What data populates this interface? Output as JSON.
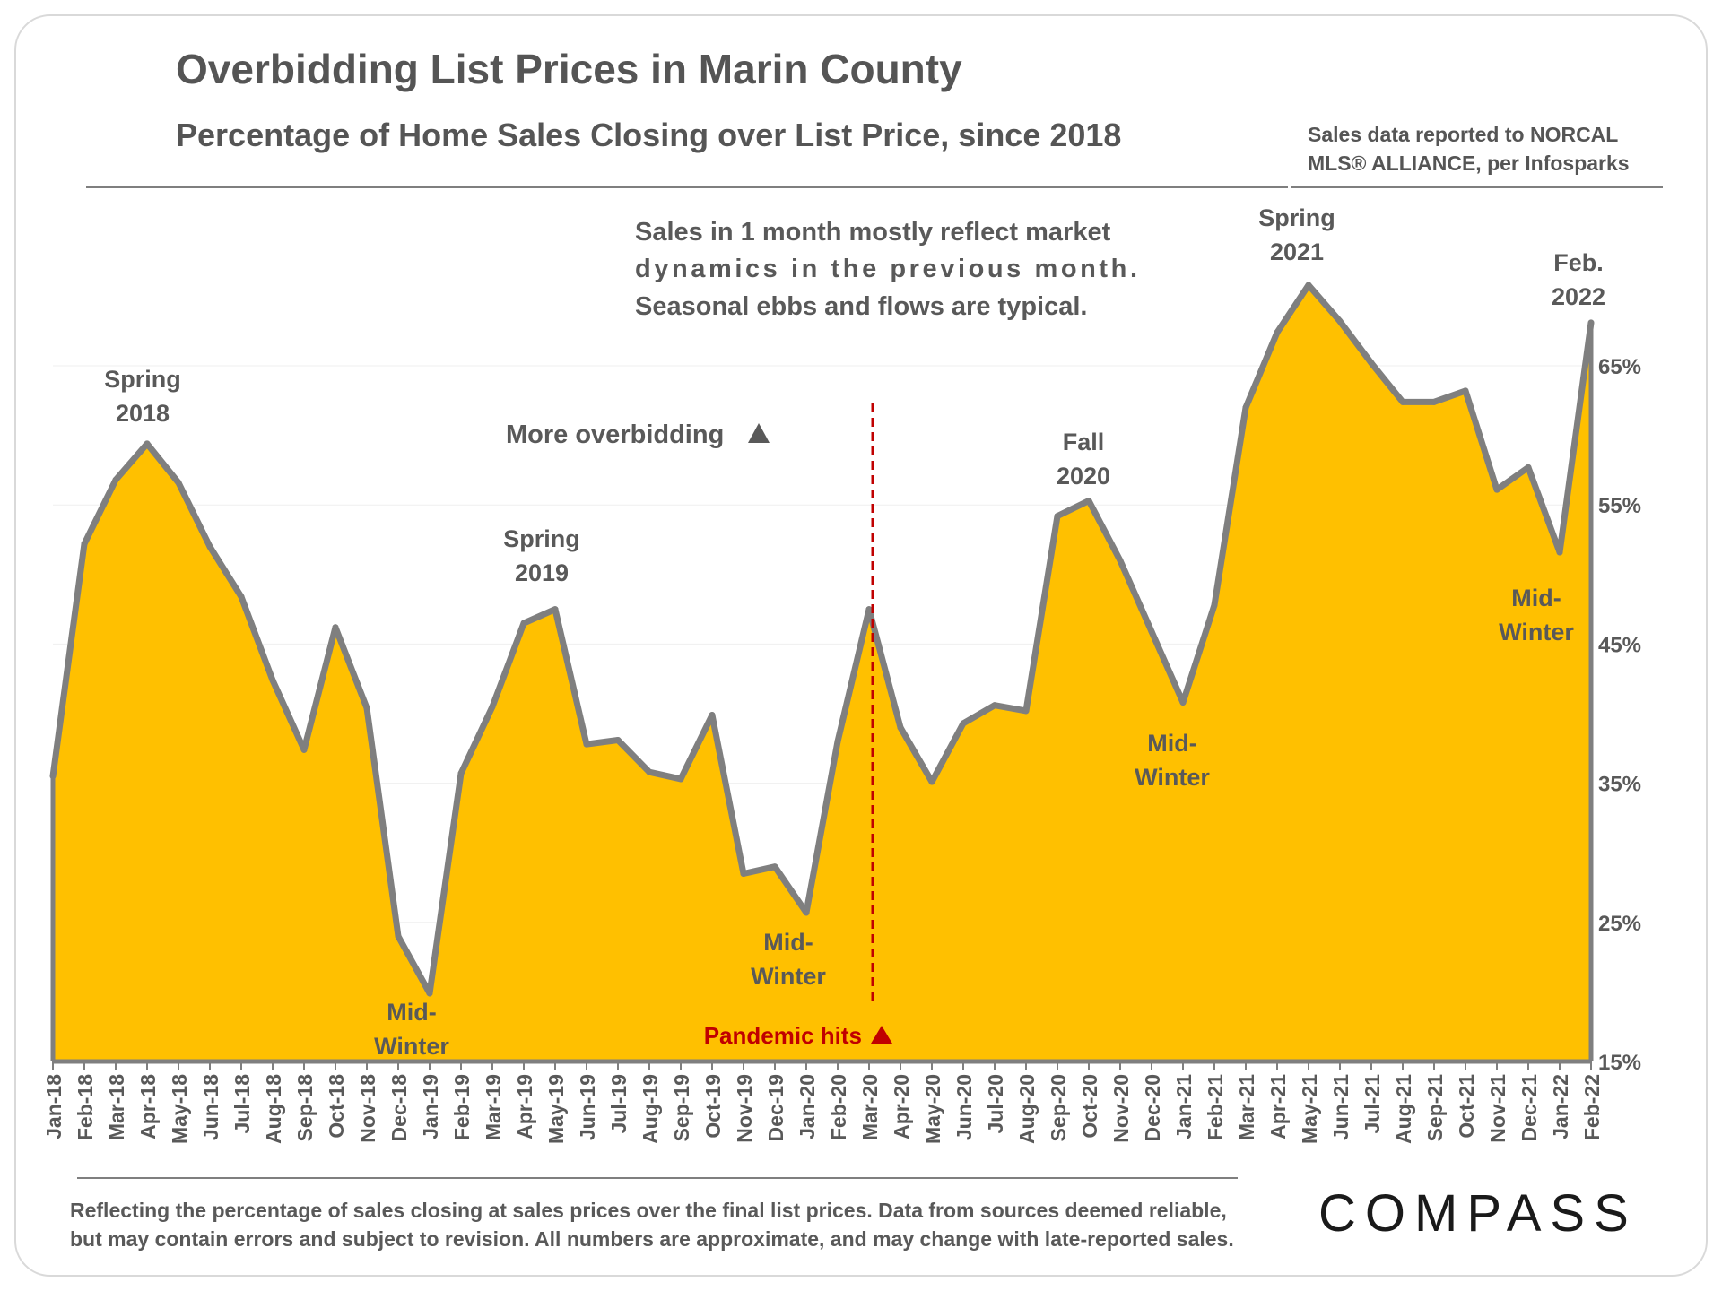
{
  "header": {
    "title": "Overbidding List Prices in Marin County",
    "subtitle": "Percentage of Home Sales Closing over List Price, since 2018",
    "source_line1": "Sales data reported to NORCAL",
    "source_line2": "MLS® ALLIANCE, per Infosparks"
  },
  "footer": {
    "note_line1": "Reflecting the percentage of sales closing at sales prices over the final list prices. Data from sources deemed reliable,",
    "note_line2": "but may contain errors and subject to revision. All numbers are approximate, and may change with late-reported sales.",
    "logo": "COMPASS"
  },
  "colors": {
    "fill": "#FFC000",
    "line": "#7F7F7F",
    "text": "#595959",
    "pandemic": "#C00000"
  },
  "chart_data": {
    "type": "area",
    "title": "Overbidding List Prices in Marin County",
    "subtitle": "Percentage of Home Sales Closing over List Price, since 2018",
    "y_axis_side": "right",
    "ylim": [
      15,
      72
    ],
    "yticks": [
      15,
      25,
      35,
      45,
      55,
      65
    ],
    "ytick_labels": [
      "15%",
      "25%",
      "35%",
      "45%",
      "55%",
      "65%"
    ],
    "categories": [
      "Jan-18",
      "Feb-18",
      "Mar-18",
      "Apr-18",
      "May-18",
      "Jun-18",
      "Jul-18",
      "Aug-18",
      "Sep-18",
      "Oct-18",
      "Nov-18",
      "Dec-18",
      "Jan-19",
      "Feb-19",
      "Mar-19",
      "Apr-19",
      "May-19",
      "Jun-19",
      "Jul-19",
      "Aug-19",
      "Sep-19",
      "Oct-19",
      "Nov-19",
      "Dec-19",
      "Jan-20",
      "Feb-20",
      "Mar-20",
      "Apr-20",
      "May-20",
      "Jun-20",
      "Jul-20",
      "Aug-20",
      "Sep-20",
      "Oct-20",
      "Nov-20",
      "Dec-20",
      "Jan-21",
      "Feb-21",
      "Mar-21",
      "Apr-21",
      "May-21",
      "Jun-21",
      "Jul-21",
      "Aug-21",
      "Sep-21",
      "Oct-21",
      "Nov-21",
      "Dec-21",
      "Jan-22",
      "Feb-22"
    ],
    "series": [
      {
        "name": "% of home sales closing over list price",
        "values": [
          35.5,
          52.2,
          56.8,
          59.4,
          56.6,
          52.0,
          48.4,
          42.4,
          37.4,
          46.2,
          40.4,
          24.0,
          19.9,
          35.7,
          40.5,
          46.5,
          47.5,
          37.8,
          38.1,
          35.8,
          35.3,
          39.9,
          28.5,
          29.0,
          25.7,
          38.0,
          47.5,
          39.0,
          35.1,
          39.3,
          40.6,
          40.2,
          54.2,
          55.3,
          51.0,
          45.9,
          40.8,
          47.8,
          62.0,
          67.4,
          70.8,
          68.2,
          65.2,
          62.4,
          62.4,
          63.2,
          56.1,
          57.7,
          51.6,
          68.1
        ]
      }
    ],
    "annotations": {
      "note_line1": "Sales in 1 month mostly reflect market",
      "note_line2": "dynamics in the previous month.",
      "note_line3": "Seasonal ebbs and flows are typical.",
      "more_overbidding": "More overbidding",
      "pandemic": "Pandemic hits",
      "pandemic_month": "Mar-20",
      "spring2018_a": "Spring",
      "spring2018_b": "2018",
      "spring2019_a": "Spring",
      "spring2019_b": "2019",
      "fall2020_a": "Fall",
      "fall2020_b": "2020",
      "spring2021_a": "Spring",
      "spring2021_b": "2021",
      "feb2022_a": "Feb.",
      "feb2022_b": "2022",
      "midwinter_a": "Mid-",
      "midwinter_b": "Winter"
    }
  }
}
